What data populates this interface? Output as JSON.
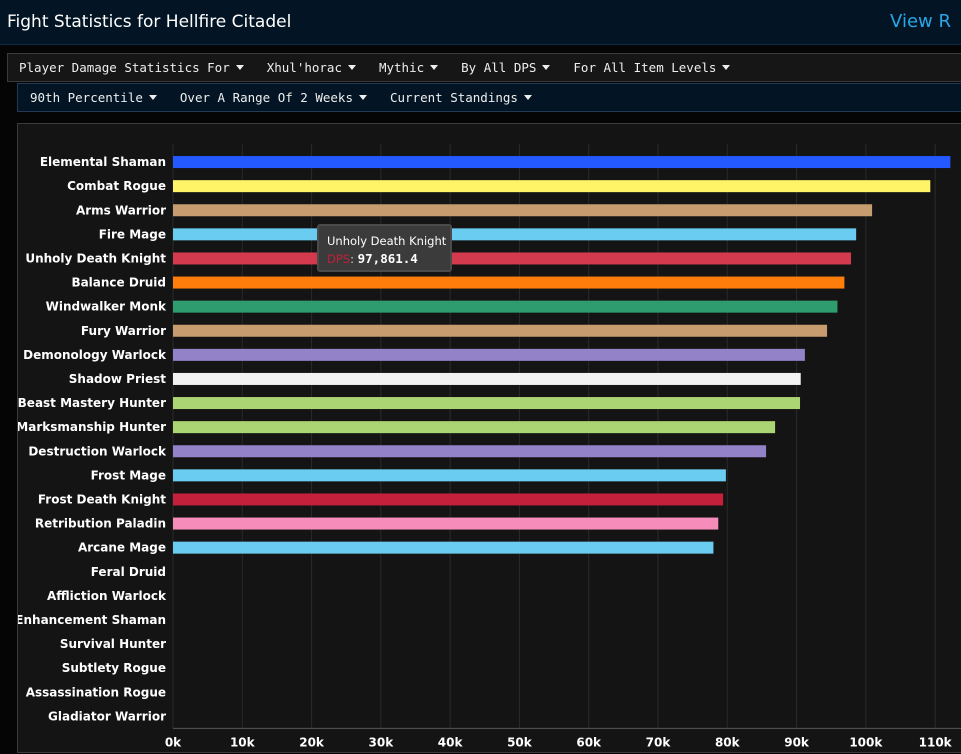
{
  "header": {
    "title": "Fight Statistics for Hellfire Citadel",
    "view_link": "View R"
  },
  "filters_row1": [
    {
      "label": "Player Damage Statistics For"
    },
    {
      "label": "Xhul'horac"
    },
    {
      "label": "Mythic"
    },
    {
      "label": "By All DPS"
    },
    {
      "label": "For All Item Levels"
    }
  ],
  "filters_row2": [
    {
      "label": "90th Percentile"
    },
    {
      "label": "Over A Range Of 2 Weeks"
    },
    {
      "label": "Current Standings"
    }
  ],
  "tooltip": {
    "name": "Unholy Death Knight",
    "label": "DPS",
    "value": "97,861.4"
  },
  "chart_data": {
    "type": "bar",
    "orientation": "horizontal",
    "title": "",
    "xlabel": "",
    "ylabel": "",
    "xlim": [
      0,
      112000
    ],
    "x_ticks": [
      0,
      10000,
      20000,
      30000,
      40000,
      50000,
      60000,
      70000,
      80000,
      90000,
      100000,
      110000
    ],
    "x_tick_labels": [
      "0k",
      "10k",
      "20k",
      "30k",
      "40k",
      "50k",
      "60k",
      "70k",
      "80k",
      "90k",
      "100k",
      "110k"
    ],
    "grid": "vertical",
    "legend": "none",
    "categories": [
      "Elemental Shaman",
      "Combat Rogue",
      "Arms Warrior",
      "Fire Mage",
      "Unholy Death Knight",
      "Balance Druid",
      "Windwalker Monk",
      "Fury Warrior",
      "Demonology Warlock",
      "Shadow Priest",
      "Beast Mastery Hunter",
      "Marksmanship Hunter",
      "Destruction Warlock",
      "Frost Mage",
      "Frost Death Knight",
      "Retribution Paladin",
      "Arcane Mage",
      "Feral Druid",
      "Affliction Warlock",
      "Enhancement Shaman",
      "Survival Hunter",
      "Subtlety Rogue",
      "Assassination Rogue",
      "Gladiator Warrior"
    ],
    "values": [
      112200,
      109300,
      100900,
      98600,
      97861.4,
      96900,
      95900,
      94400,
      91200,
      90600,
      90500,
      86900,
      85600,
      79800,
      79400,
      78700,
      78000,
      0,
      0,
      0,
      0,
      0,
      0,
      0
    ],
    "colors": [
      "#2459ff",
      "#fff468",
      "#c79c6e",
      "#69ccf0",
      "#d43a4e",
      "#ff7d0a",
      "#2e9c6e",
      "#c79c6e",
      "#9482c9",
      "#f2f2f2",
      "#abd473",
      "#abd473",
      "#9482c9",
      "#69ccf0",
      "#c41f3b",
      "#f58cba",
      "#69ccf0",
      "#ff7d0a",
      "#9482c9",
      "#2459ff",
      "#abd473",
      "#fff468",
      "#fff468",
      "#c79c6e"
    ]
  }
}
